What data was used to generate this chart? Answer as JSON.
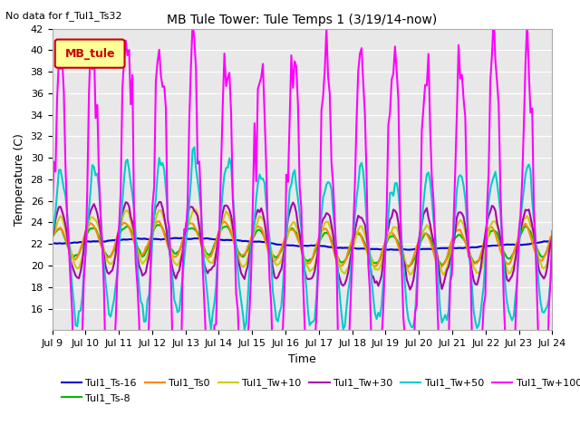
{
  "title": "MB Tule Tower: Tule Temps 1 (3/19/14-now)",
  "no_data_text": "No data for f_Tul1_Ts32",
  "ylabel": "Temperature (C)",
  "xlabel": "Time",
  "xlim_days": [
    0,
    15
  ],
  "ylim": [
    14,
    42
  ],
  "yticks": [
    16,
    18,
    20,
    22,
    24,
    26,
    28,
    30,
    32,
    34,
    36,
    38,
    40,
    42
  ],
  "xtick_labels": [
    "Jul 9",
    "Jul 10",
    "Jul 11",
    "Jul 12",
    "Jul 13",
    "Jul 14",
    "Jul 15",
    "Jul 16",
    "Jul 17",
    "Jul 18",
    "Jul 19",
    "Jul 20",
    "Jul 21",
    "Jul 22",
    "Jul 23",
    "Jul 24"
  ],
  "legend_box_label": "MB_tule",
  "legend_box_color": "#ffff99",
  "legend_box_border": "#cc0000",
  "bg_color": "#e8e8e8",
  "series": [
    {
      "label": "Tul1_Ts-16",
      "color": "#0000cc",
      "lw": 1.5
    },
    {
      "label": "Tul1_Ts-8",
      "color": "#00bb00",
      "lw": 1.5
    },
    {
      "label": "Tul1_Ts0",
      "color": "#ff8800",
      "lw": 1.5
    },
    {
      "label": "Tul1_Tw+10",
      "color": "#cccc00",
      "lw": 1.5
    },
    {
      "label": "Tul1_Tw+30",
      "color": "#aa00aa",
      "lw": 1.5
    },
    {
      "label": "Tul1_Tw+50",
      "color": "#00cccc",
      "lw": 1.5
    },
    {
      "label": "Tul1_Tw+100",
      "color": "#ff00ff",
      "lw": 1.5
    }
  ]
}
